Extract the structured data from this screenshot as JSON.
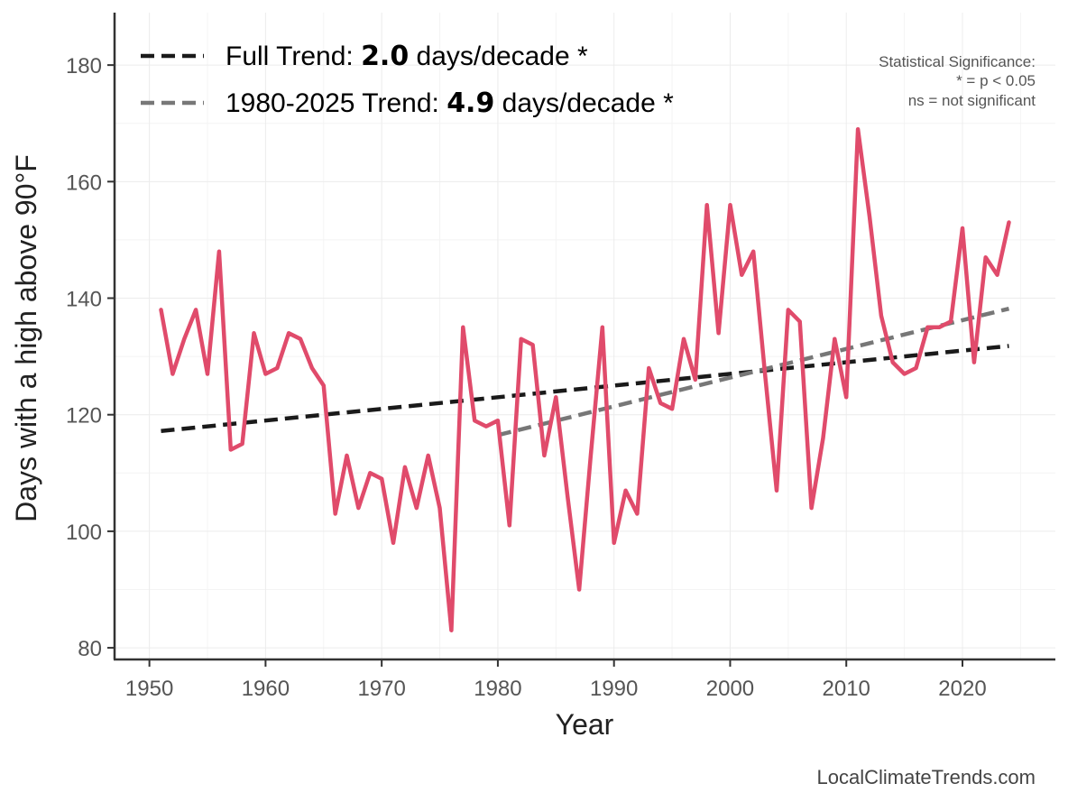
{
  "chart_data": {
    "type": "line",
    "title": "",
    "xlabel": "Year",
    "ylabel": "Days with a high above 90°F",
    "xlim": [
      1947,
      2028
    ],
    "ylim": [
      78,
      189
    ],
    "x_ticks": [
      1950,
      1960,
      1970,
      1980,
      1990,
      2000,
      2010,
      2020
    ],
    "y_ticks": [
      80,
      100,
      120,
      140,
      160,
      180
    ],
    "grid": true,
    "x": [
      1951,
      1952,
      1953,
      1954,
      1955,
      1956,
      1957,
      1958,
      1959,
      1960,
      1961,
      1962,
      1963,
      1964,
      1965,
      1966,
      1967,
      1968,
      1969,
      1970,
      1971,
      1972,
      1973,
      1974,
      1975,
      1976,
      1977,
      1978,
      1979,
      1980,
      1981,
      1982,
      1983,
      1984,
      1985,
      1986,
      1987,
      1988,
      1989,
      1990,
      1991,
      1992,
      1993,
      1994,
      1995,
      1996,
      1997,
      1998,
      1999,
      2000,
      2001,
      2002,
      2003,
      2004,
      2005,
      2006,
      2007,
      2008,
      2009,
      2010,
      2011,
      2012,
      2013,
      2014,
      2015,
      2016,
      2017,
      2018,
      2019,
      2020,
      2021,
      2022,
      2023,
      2024
    ],
    "series": [
      {
        "name": "Days with a high above 90°F",
        "color": "#e04b6b",
        "values": [
          138,
          127,
          133,
          138,
          127,
          148,
          114,
          115,
          134,
          127,
          128,
          134,
          133,
          128,
          125,
          103,
          113,
          104,
          110,
          109,
          98,
          111,
          104,
          113,
          104,
          83,
          135,
          119,
          118,
          119,
          101,
          133,
          132,
          113,
          123,
          106,
          90,
          113,
          135,
          98,
          107,
          103,
          128,
          122,
          121,
          133,
          126,
          156,
          134,
          156,
          144,
          148,
          127,
          107,
          138,
          136,
          104,
          116,
          133,
          123,
          169,
          154,
          137,
          129,
          127,
          128,
          135,
          135,
          136,
          152,
          129,
          147,
          144,
          153
        ]
      }
    ],
    "trend_lines": [
      {
        "name": "Full Trend",
        "color": "#1a1a1a",
        "x": [
          1951,
          2024
        ],
        "y": [
          117.2,
          131.8
        ]
      },
      {
        "name": "1980-2025 Trend",
        "color": "#777777",
        "x": [
          1980,
          2024
        ],
        "y": [
          116.5,
          138.2
        ]
      }
    ],
    "legend": {
      "position": "top-left",
      "entries": [
        {
          "prefix": "Full Trend: ",
          "value": "2.0",
          "suffix": " days/decade *",
          "color": "#1a1a1a"
        },
        {
          "prefix": "1980-2025 Trend: ",
          "value": "4.9",
          "suffix": " days/decade *",
          "color": "#777777"
        }
      ]
    },
    "significance_note": [
      "Statistical Significance:",
      "* = p < 0.05",
      "ns = not significant"
    ],
    "source": "LocalClimateTrends.com"
  }
}
